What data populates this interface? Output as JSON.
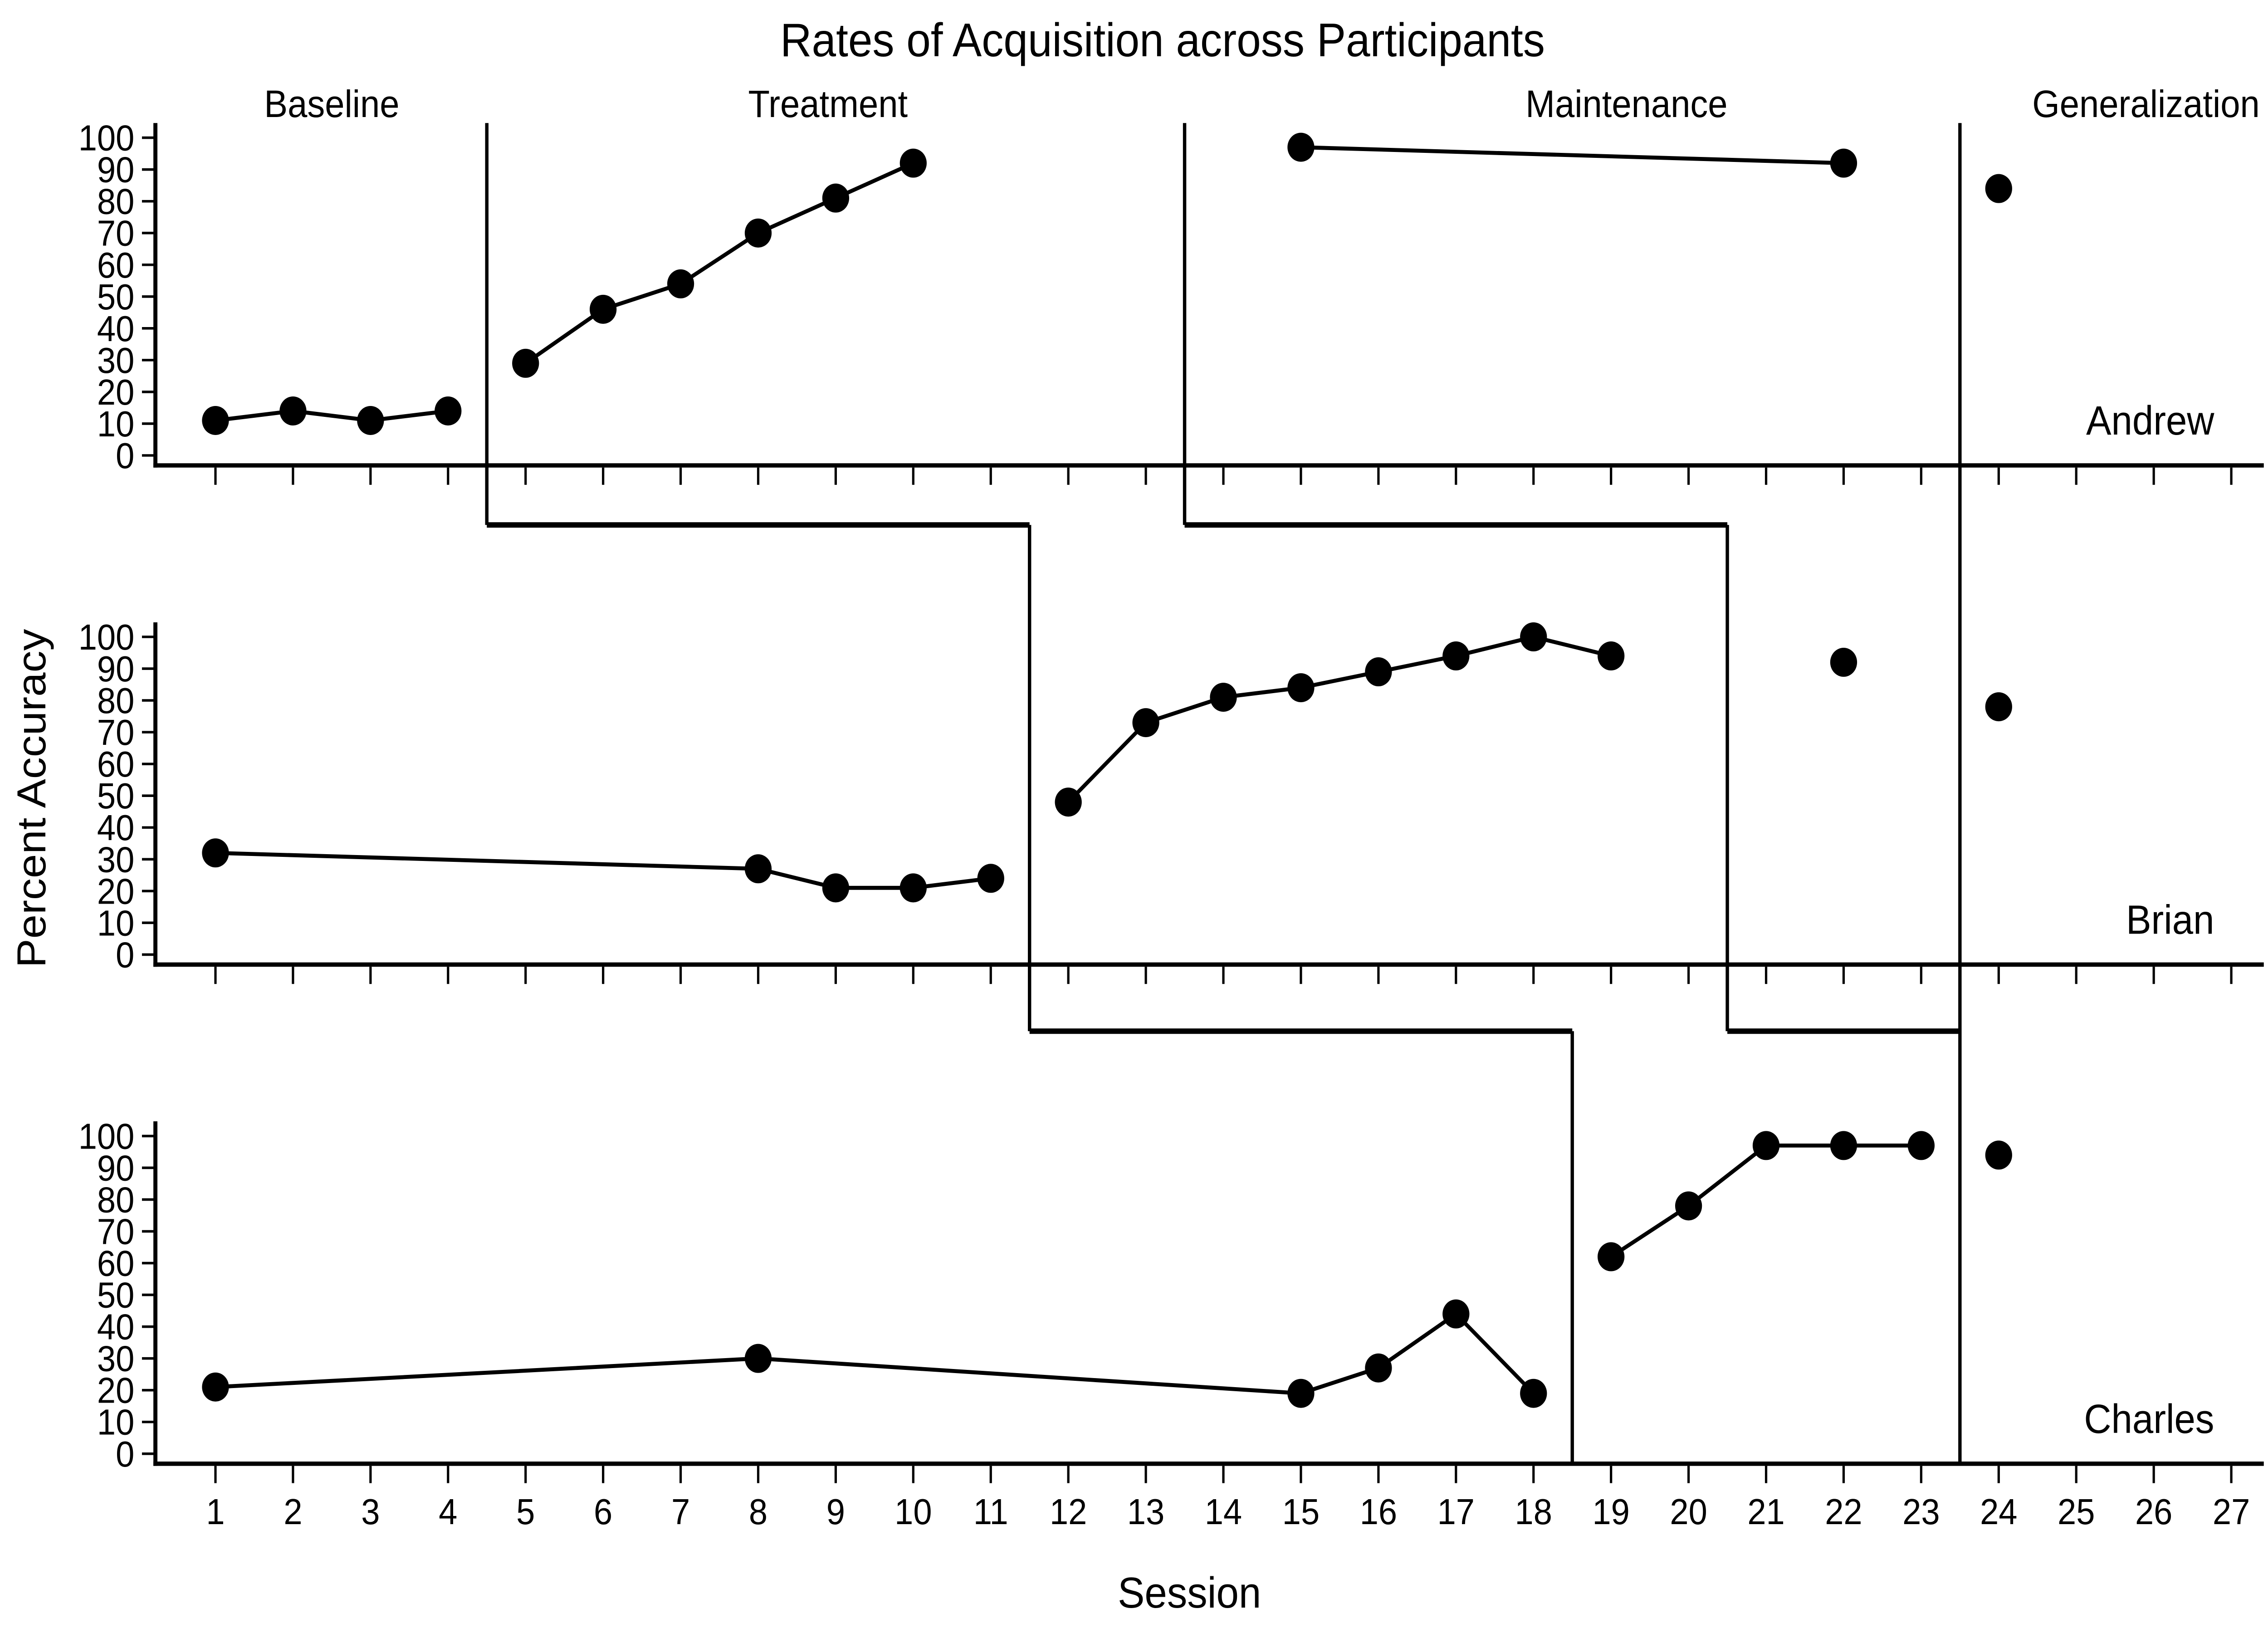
{
  "chart_data": {
    "type": "line",
    "title": "Rates of Acquisition across Participants",
    "xlabel": "Session",
    "ylabel": "Percent Accuracy",
    "xlim": [
      1,
      27
    ],
    "ylim": [
      0,
      100
    ],
    "grid": false,
    "legend_position": "none",
    "colors": {
      "foreground": "#000000",
      "background": "#ffffff"
    },
    "x_ticks": [
      1,
      2,
      3,
      4,
      5,
      6,
      7,
      8,
      9,
      10,
      11,
      12,
      13,
      14,
      15,
      16,
      17,
      18,
      19,
      20,
      21,
      22,
      23,
      24,
      25,
      26,
      27
    ],
    "y_ticks": [
      0,
      10,
      20,
      30,
      40,
      50,
      60,
      70,
      80,
      90,
      100
    ],
    "phase_labels": [
      {
        "label": "Baseline",
        "session": 2.5
      },
      {
        "label": "Treatment",
        "session": 8.9
      },
      {
        "label": "Maintenance",
        "session": 19.2
      },
      {
        "label": "Generalization",
        "session": 25.9
      }
    ],
    "phase_boundaries": {
      "baseline_treatment_steps": [
        4.5,
        11.5,
        18.5
      ],
      "treatment_maintenance_steps": [
        13.5,
        20.5
      ],
      "generalization": 23.5
    },
    "panels": [
      {
        "participant": "Andrew",
        "series": [
          {
            "phase": "Baseline",
            "points": [
              [
                1,
                11
              ],
              [
                2,
                14
              ],
              [
                3,
                11
              ],
              [
                4,
                14
              ]
            ]
          },
          {
            "phase": "Treatment",
            "points": [
              [
                5,
                29
              ],
              [
                6,
                46
              ],
              [
                7,
                54
              ],
              [
                8,
                70
              ],
              [
                9,
                81
              ],
              [
                10,
                92
              ]
            ]
          },
          {
            "phase": "Maintenance",
            "points": [
              [
                15,
                97
              ],
              [
                22,
                92
              ]
            ]
          },
          {
            "phase": "Generalization",
            "points": [
              [
                24,
                84
              ]
            ]
          }
        ]
      },
      {
        "participant": "Brian",
        "series": [
          {
            "phase": "Baseline",
            "points": [
              [
                1,
                32
              ],
              [
                8,
                27
              ],
              [
                9,
                21
              ],
              [
                10,
                21
              ],
              [
                11,
                24
              ]
            ]
          },
          {
            "phase": "Treatment",
            "points": [
              [
                12,
                48
              ],
              [
                13,
                73
              ],
              [
                14,
                81
              ],
              [
                15,
                84
              ],
              [
                16,
                89
              ],
              [
                17,
                94
              ],
              [
                18,
                100
              ],
              [
                19,
                94
              ]
            ]
          },
          {
            "phase": "Maintenance",
            "points": [
              [
                22,
                92
              ]
            ]
          },
          {
            "phase": "Generalization",
            "points": [
              [
                24,
                78
              ]
            ]
          }
        ]
      },
      {
        "participant": "Charles",
        "series": [
          {
            "phase": "Baseline",
            "points": [
              [
                1,
                21
              ],
              [
                8,
                30
              ],
              [
                15,
                19
              ],
              [
                16,
                27
              ],
              [
                17,
                44
              ],
              [
                18,
                19
              ]
            ]
          },
          {
            "phase": "Treatment",
            "points": [
              [
                19,
                62
              ],
              [
                20,
                78
              ],
              [
                21,
                97
              ],
              [
                22,
                97
              ],
              [
                23,
                97
              ]
            ]
          },
          {
            "phase": "Generalization",
            "points": [
              [
                24,
                94
              ]
            ]
          }
        ]
      }
    ]
  }
}
